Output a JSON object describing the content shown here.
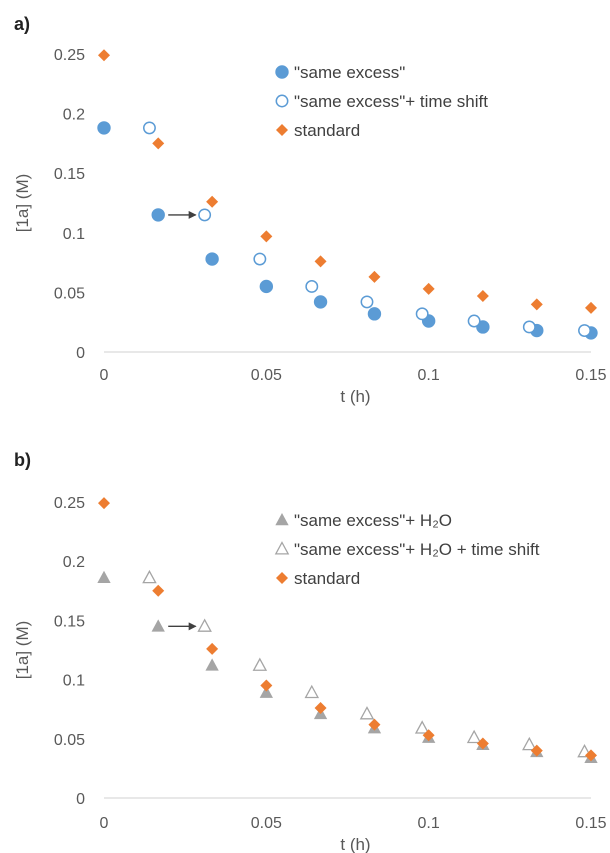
{
  "chart_data": [
    {
      "panel_label": "a)",
      "type": "scatter",
      "xlabel": "t (h)",
      "ylabel": "[1a] (M)",
      "xlim": [
        0,
        0.15
      ],
      "ylim": [
        0,
        0.25
      ],
      "xticks": [
        "0",
        "0.05",
        "0.1",
        "0.15"
      ],
      "yticks": [
        "0",
        "0.05",
        "0.1",
        "0.15",
        "0.2",
        "0.25"
      ],
      "legend_position": "top-right",
      "series": [
        {
          "name": "\"same excess\"",
          "marker": "circle-filled",
          "color": "#5b9bd5",
          "x": [
            0,
            0.0167,
            0.0333,
            0.05,
            0.0667,
            0.0833,
            0.1,
            0.1167,
            0.1333,
            0.15
          ],
          "y": [
            0.188,
            0.115,
            0.078,
            0.055,
            0.042,
            0.032,
            0.026,
            0.021,
            0.018,
            0.016
          ]
        },
        {
          "name": "\"same excess\"+ time shift",
          "marker": "circle-open",
          "color": "#5b9bd5",
          "x": [
            0.014,
            0.031,
            0.048,
            0.064,
            0.081,
            0.098,
            0.114,
            0.131,
            0.148
          ],
          "y": [
            0.188,
            0.115,
            0.078,
            0.055,
            0.042,
            0.032,
            0.026,
            0.021,
            0.018
          ]
        },
        {
          "name": "standard",
          "marker": "diamond",
          "color": "#ed7d31",
          "x": [
            0,
            0.0167,
            0.0333,
            0.05,
            0.0667,
            0.0833,
            0.1,
            0.1167,
            0.1333,
            0.15
          ],
          "y": [
            0.249,
            0.175,
            0.126,
            0.097,
            0.076,
            0.063,
            0.053,
            0.047,
            0.04,
            0.037
          ]
        }
      ],
      "arrow": {
        "from": [
          0.0167,
          0.115
        ],
        "to": [
          0.031,
          0.115
        ]
      }
    },
    {
      "panel_label": "b)",
      "type": "scatter",
      "xlabel": "t (h)",
      "ylabel": "[1a] (M)",
      "xlim": [
        0,
        0.15
      ],
      "ylim": [
        0,
        0.25
      ],
      "xticks": [
        "0",
        "0.05",
        "0.1",
        "0.15"
      ],
      "yticks": [
        "0",
        "0.05",
        "0.1",
        "0.15",
        "0.2",
        "0.25"
      ],
      "legend_position": "top-right",
      "series": [
        {
          "name": "\"same excess\"+ H₂O",
          "marker": "triangle-filled",
          "color": "#a5a5a5",
          "x": [
            0,
            0.0167,
            0.0333,
            0.05,
            0.0667,
            0.0833,
            0.1,
            0.1167,
            0.1333,
            0.15
          ],
          "y": [
            0.186,
            0.145,
            0.112,
            0.089,
            0.071,
            0.059,
            0.051,
            0.045,
            0.039,
            0.034
          ]
        },
        {
          "name": "\"same excess\"+ H₂O + time shift",
          "marker": "triangle-open",
          "color": "#a5a5a5",
          "x": [
            0.014,
            0.031,
            0.048,
            0.064,
            0.081,
            0.098,
            0.114,
            0.131,
            0.148
          ],
          "y": [
            0.186,
            0.145,
            0.112,
            0.089,
            0.071,
            0.059,
            0.051,
            0.045,
            0.039
          ]
        },
        {
          "name": "standard",
          "marker": "diamond",
          "color": "#ed7d31",
          "x": [
            0,
            0.0167,
            0.0333,
            0.05,
            0.0667,
            0.0833,
            0.1,
            0.1167,
            0.1333,
            0.15
          ],
          "y": [
            0.249,
            0.175,
            0.126,
            0.095,
            0.076,
            0.062,
            0.053,
            0.046,
            0.04,
            0.036
          ]
        }
      ],
      "arrow": {
        "from": [
          0.0167,
          0.145
        ],
        "to": [
          0.031,
          0.145
        ]
      }
    }
  ]
}
